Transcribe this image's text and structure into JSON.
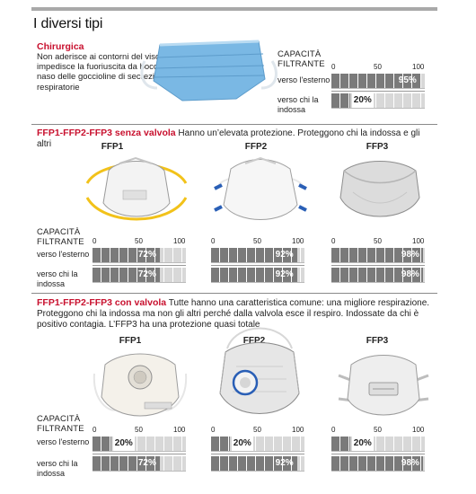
{
  "title": "I diversi tipi",
  "chirurgica": {
    "name": "Chirurgica",
    "description": "Non aderisce ai contorni del viso e impedisce la fuoriuscita da bocca e naso delle goccioline di secrezioni respiratorie",
    "capacity_label": "CAPACITÀ FILTRANTE",
    "scale": [
      "0",
      "50",
      "100"
    ],
    "rows": [
      {
        "label": "verso l'esterno",
        "value": 95,
        "text": "95%"
      },
      {
        "label": "verso chi la indossa",
        "value": 20,
        "text": "20%"
      }
    ]
  },
  "senza_valvola": {
    "heading_red": "FFP1-FFP2-FFP3 senza valvola",
    "heading_text": " Hanno un’elevata protezione. Proteggono chi la indossa e gli altri",
    "capacity_label": "CAPACITÀ FILTRANTE",
    "row_labels": [
      "verso l'esterno",
      "verso chi la indossa"
    ],
    "scale": [
      "0",
      "50",
      "100"
    ],
    "masks": [
      {
        "name": "FFP1",
        "out": 72,
        "out_text": "72%",
        "in": 72,
        "in_text": "72%"
      },
      {
        "name": "FFP2",
        "out": 92,
        "out_text": "92%",
        "in": 92,
        "in_text": "92%"
      },
      {
        "name": "FFP3",
        "out": 98,
        "out_text": "98%",
        "in": 98,
        "in_text": "98%"
      }
    ]
  },
  "con_valvola": {
    "heading_red": "FFP1-FFP2-FFP3 con valvola",
    "heading_text": " Tutte hanno una caratteristica comune: una migliore respirazione. Proteggono chi la indossa ma non gli altri perché dalla valvola esce il respiro. Indossate da chi è positivo contagia. L’FFP3 ha una protezione quasi totale",
    "capacity_label": "CAPACITÀ FILTRANTE",
    "row_labels": [
      "verso l'esterno",
      "verso chi la indossa"
    ],
    "scale": [
      "0",
      "50",
      "100"
    ],
    "masks": [
      {
        "name": "FFP1",
        "out": 20,
        "out_text": "20%",
        "in": 72,
        "in_text": "72%"
      },
      {
        "name": "FFP2",
        "out": 20,
        "out_text": "20%",
        "in": 92,
        "in_text": "92%"
      },
      {
        "name": "FFP3",
        "out": 20,
        "out_text": "20%",
        "in": 98,
        "in_text": "98%"
      }
    ]
  },
  "colors": {
    "accent_red": "#c8102e",
    "bar_fill": "#7a7a7a",
    "bar_track": "#d8d8d8",
    "surgical_blue": "#6fb3e0"
  }
}
